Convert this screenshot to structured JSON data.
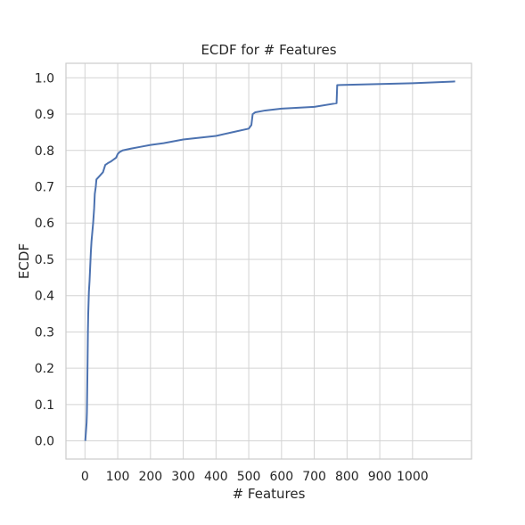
{
  "chart_data": {
    "type": "line",
    "title": "ECDF for # Features",
    "xlabel": "# Features",
    "ylabel": "ECDF",
    "xlim": [
      -58,
      1180
    ],
    "ylim": [
      -0.05,
      1.04
    ],
    "xticks": [
      0,
      100,
      200,
      300,
      400,
      500,
      600,
      700,
      800,
      900,
      1000
    ],
    "yticks": [
      0.0,
      0.1,
      0.2,
      0.3,
      0.4,
      0.5,
      0.6,
      0.7,
      0.8,
      0.9,
      1.0
    ],
    "ytick_labels": [
      "0.0",
      "0.1",
      "0.2",
      "0.3",
      "0.4",
      "0.5",
      "0.6",
      "0.7",
      "0.8",
      "0.9",
      "1.0"
    ],
    "grid": true,
    "series": [
      {
        "color": "#4c72b0",
        "x": [
          1,
          5,
          6,
          7,
          8,
          9,
          10,
          11,
          12,
          14,
          16,
          18,
          20,
          22,
          25,
          28,
          30,
          33,
          35,
          45,
          55,
          62,
          70,
          80,
          95,
          100,
          105,
          115,
          140,
          170,
          200,
          240,
          300,
          350,
          400,
          450,
          500,
          508,
          512,
          520,
          550,
          600,
          700,
          768,
          770,
          1000,
          1130
        ],
        "y": [
          0.0,
          0.05,
          0.08,
          0.15,
          0.22,
          0.3,
          0.35,
          0.38,
          0.41,
          0.44,
          0.48,
          0.52,
          0.55,
          0.57,
          0.6,
          0.64,
          0.68,
          0.7,
          0.72,
          0.73,
          0.74,
          0.76,
          0.765,
          0.77,
          0.78,
          0.79,
          0.795,
          0.8,
          0.805,
          0.81,
          0.815,
          0.82,
          0.83,
          0.835,
          0.84,
          0.85,
          0.86,
          0.87,
          0.9,
          0.905,
          0.91,
          0.915,
          0.92,
          0.93,
          0.98,
          0.985,
          0.99
        ]
      }
    ]
  }
}
